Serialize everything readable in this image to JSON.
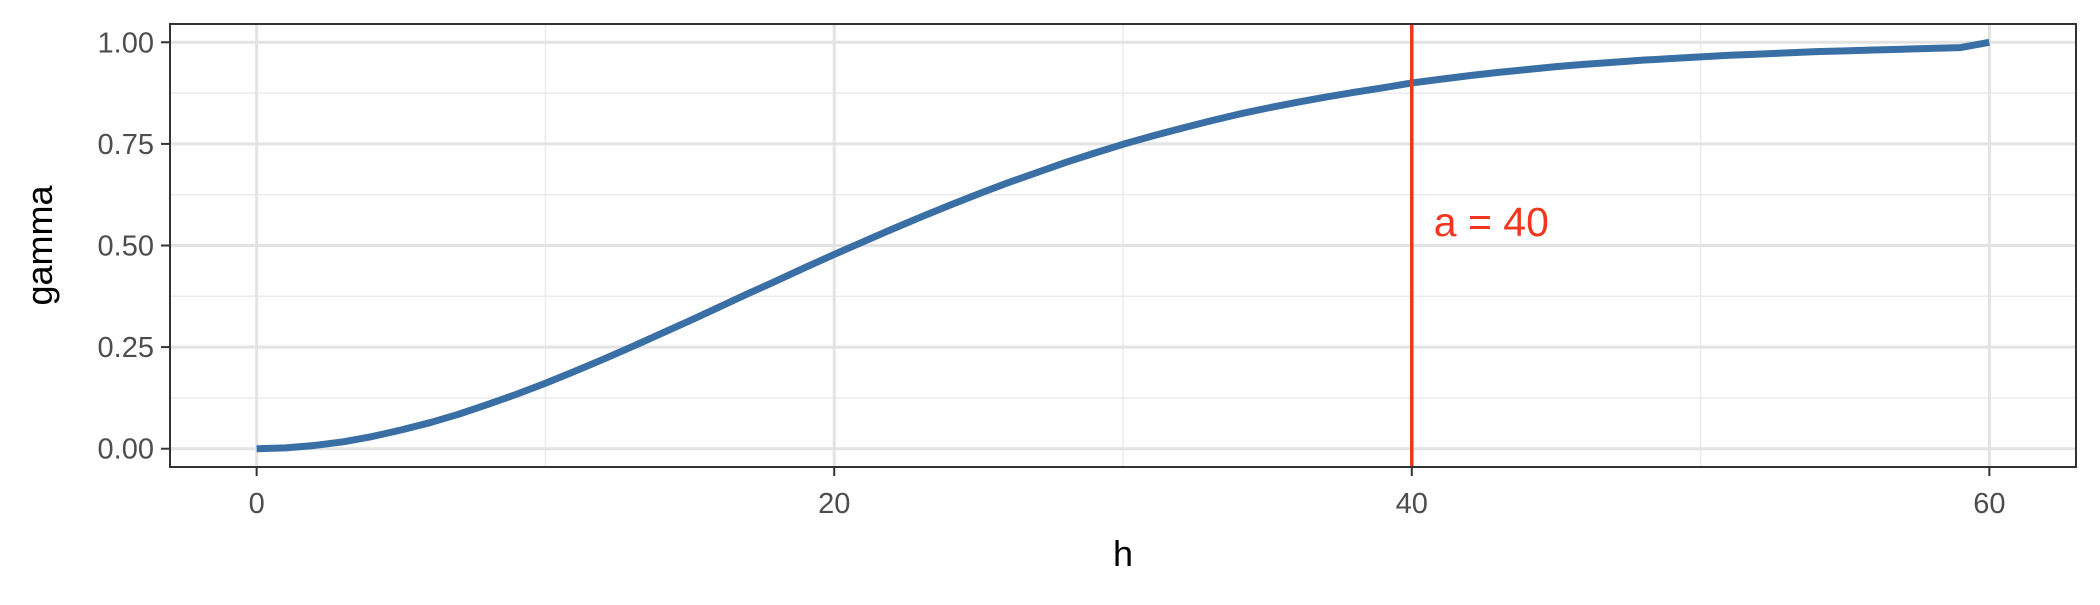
{
  "chart_data": {
    "type": "line",
    "xlabel": "h",
    "ylabel": "gamma",
    "xlim": [
      -3,
      63
    ],
    "ylim": [
      -0.045,
      1.045
    ],
    "x_ticks": [
      0,
      20,
      40,
      60
    ],
    "x_tick_labels": [
      "0",
      "20",
      "40",
      "60"
    ],
    "x_minor_ticks": [
      10,
      30,
      50
    ],
    "y_ticks": [
      0,
      0.25,
      0.5,
      0.75,
      1
    ],
    "y_tick_labels": [
      "0.00",
      "0.25",
      "0.50",
      "0.75",
      "1.00"
    ],
    "y_minor_ticks": [
      0.125,
      0.375,
      0.625,
      0.875
    ],
    "grid": true,
    "series": [
      {
        "color": "#3a6fa6",
        "x": [
          0,
          1,
          2,
          3,
          4,
          5,
          6,
          7,
          8,
          9,
          10,
          11,
          12,
          13,
          14,
          15,
          16,
          17,
          18,
          19,
          20,
          21,
          22,
          23,
          24,
          25,
          26,
          27,
          28,
          29,
          30,
          31,
          32,
          33,
          34,
          35,
          36,
          37,
          38,
          39,
          40,
          41,
          42,
          43,
          44,
          45,
          46,
          47,
          48,
          49,
          50,
          51,
          52,
          53,
          54,
          55,
          56,
          57,
          58,
          59,
          60
        ],
        "y": [
          0.0,
          0.002,
          0.008,
          0.017,
          0.03,
          0.046,
          0.064,
          0.085,
          0.109,
          0.134,
          0.161,
          0.19,
          0.22,
          0.251,
          0.283,
          0.315,
          0.348,
          0.381,
          0.413,
          0.446,
          0.478,
          0.509,
          0.54,
          0.57,
          0.599,
          0.627,
          0.654,
          0.679,
          0.704,
          0.727,
          0.749,
          0.769,
          0.788,
          0.806,
          0.823,
          0.838,
          0.852,
          0.865,
          0.877,
          0.888,
          0.9,
          0.909,
          0.918,
          0.926,
          0.933,
          0.94,
          0.946,
          0.951,
          0.956,
          0.96,
          0.964,
          0.968,
          0.971,
          0.974,
          0.977,
          0.979,
          0.981,
          0.983,
          0.985,
          0.987,
          1.0
        ]
      }
    ],
    "reference_line": {
      "x": 40,
      "label": "a = 40",
      "color": "#f0361d"
    }
  }
}
